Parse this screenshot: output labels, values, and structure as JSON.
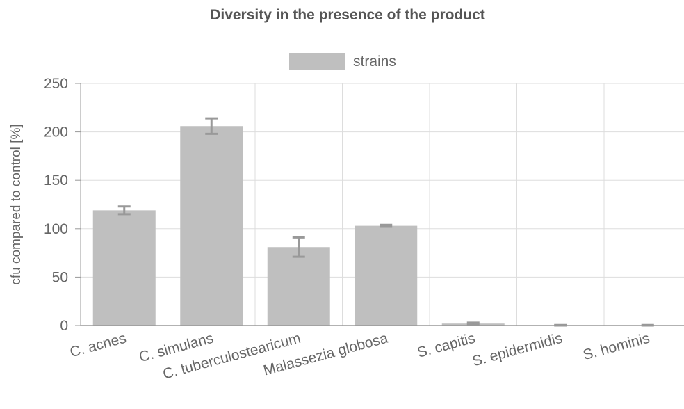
{
  "chart_data": {
    "type": "bar",
    "title": "Diversity in the presence of the product",
    "xlabel": "",
    "ylabel": "cfu compared to control [%]",
    "ylim": [
      0,
      250
    ],
    "yticks": [
      0,
      50,
      100,
      150,
      200,
      250
    ],
    "grid": true,
    "legend": "top-center",
    "categories": [
      "C. acnes",
      "C. simulans",
      "C. tuberculostearicum",
      "Malassezia globosa",
      "S. capitis",
      "S. epidermidis",
      "S. hominis"
    ],
    "series": [
      {
        "name": "strains",
        "color": "#bfbfbf",
        "values": [
          119,
          206,
          81,
          103,
          2,
          0,
          0
        ],
        "errors": [
          4,
          8,
          10,
          1,
          1,
          0.5,
          0.5
        ]
      }
    ]
  },
  "colors": {
    "title": "#555555",
    "text": "#666666",
    "grid": "#dddddd",
    "axis": "#999999",
    "bar": "#bfbfbf",
    "error_bar": "#999999"
  }
}
